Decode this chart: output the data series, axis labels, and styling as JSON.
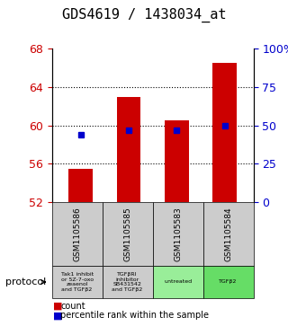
{
  "title": "GDS4619 / 1438034_at",
  "samples": [
    "GSM1105586",
    "GSM1105585",
    "GSM1105583",
    "GSM1105584"
  ],
  "bar_values": [
    55.5,
    63.0,
    60.5,
    66.5
  ],
  "bar_base": 52,
  "percentile_values": [
    59.0,
    59.5,
    59.5,
    60.0
  ],
  "ylim": [
    52,
    68
  ],
  "yticks_left": [
    52,
    56,
    60,
    64,
    68
  ],
  "yticks_right_vals": [
    52,
    56,
    60,
    64,
    68
  ],
  "yticks_right_labels": [
    "0",
    "25",
    "50",
    "75",
    "100%"
  ],
  "bar_color": "#cc0000",
  "percentile_color": "#0000cc",
  "protocol_labels": [
    "Tak1 inhibit\nor 5Z-7-oxo\nzeaenol\nand TGFβ2",
    "TGFβRI\ninhibitor\nSB431542\nand TGFβ2",
    "untreated",
    "TGFβ2"
  ],
  "protocol_colors": [
    "#cccccc",
    "#cccccc",
    "#99ee99",
    "#66dd66"
  ],
  "sample_bg_color": "#cccccc",
  "title_fontsize": 11,
  "tick_fontsize": 9,
  "bar_width": 0.5
}
